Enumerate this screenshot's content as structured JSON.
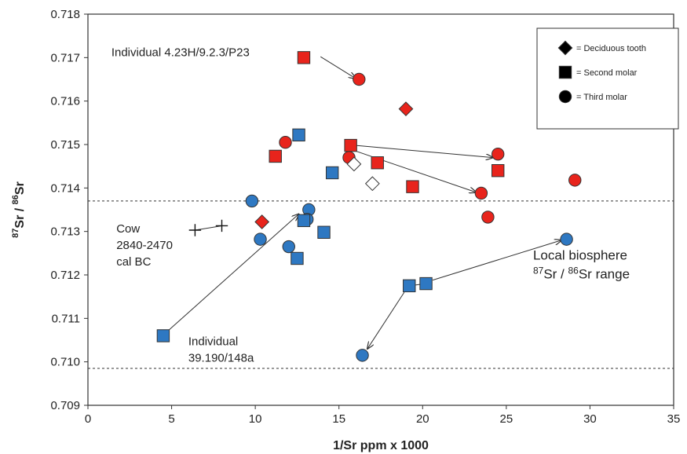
{
  "chart_data": {
    "type": "scatter",
    "xlabel": "1/Sr ppm x 1000",
    "ylabel": {
      "pre": "87",
      "mid": "Sr / ",
      "pre2": "86",
      "post": "Sr"
    },
    "xlim": [
      0,
      35
    ],
    "ylim": [
      0.709,
      0.718
    ],
    "x_ticks": [
      0,
      5,
      10,
      15,
      20,
      25,
      30,
      35
    ],
    "y_ticks": [
      0.709,
      0.71,
      0.711,
      0.712,
      0.713,
      0.714,
      0.715,
      0.716,
      0.717,
      0.718
    ],
    "x_tick_labels": [
      "0",
      "5",
      "10",
      "15",
      "20",
      "25",
      "30",
      "35"
    ],
    "y_tick_labels": [
      "0.709",
      "0.710",
      "0.711",
      "0.712",
      "0.713",
      "0.714",
      "0.715",
      "0.716",
      "0.717",
      "0.718"
    ],
    "colors": {
      "red": "#e8241c",
      "blue": "#2e78c2",
      "edge": "#333333"
    },
    "reference_lines": [
      0.7137,
      0.70985
    ],
    "legend": {
      "placement": "top-right",
      "entries": [
        {
          "marker": "diamond",
          "label": "= Deciduous tooth"
        },
        {
          "marker": "square",
          "label": "= Second molar"
        },
        {
          "marker": "circle",
          "label": "= Third molar"
        }
      ]
    },
    "points": [
      {
        "marker": "square",
        "color": "red",
        "x": 12.9,
        "y": 0.717
      },
      {
        "marker": "circle",
        "color": "red",
        "x": 16.2,
        "y": 0.7165
      },
      {
        "marker": "diamond",
        "color": "red",
        "x": 19.0,
        "y": 0.71582
      },
      {
        "marker": "circle",
        "color": "red",
        "x": 11.8,
        "y": 0.71505
      },
      {
        "marker": "square",
        "color": "red",
        "x": 11.2,
        "y": 0.71473
      },
      {
        "marker": "square",
        "color": "red",
        "x": 15.7,
        "y": 0.71498
      },
      {
        "marker": "circle",
        "color": "red",
        "x": 15.6,
        "y": 0.7147
      },
      {
        "marker": "square",
        "color": "red",
        "x": 17.3,
        "y": 0.71458
      },
      {
        "marker": "square",
        "color": "red",
        "x": 19.4,
        "y": 0.71403
      },
      {
        "marker": "circle",
        "color": "red",
        "x": 24.5,
        "y": 0.71478
      },
      {
        "marker": "square",
        "color": "red",
        "x": 24.5,
        "y": 0.7144
      },
      {
        "marker": "circle",
        "color": "red",
        "x": 23.5,
        "y": 0.71388
      },
      {
        "marker": "circle",
        "color": "red",
        "x": 29.1,
        "y": 0.71418
      },
      {
        "marker": "circle",
        "color": "red",
        "x": 23.9,
        "y": 0.71333
      },
      {
        "marker": "diamond",
        "color": "red",
        "x": 10.4,
        "y": 0.71322
      },
      {
        "marker": "square",
        "color": "blue",
        "x": 12.6,
        "y": 0.71522
      },
      {
        "marker": "square",
        "color": "blue",
        "x": 14.6,
        "y": 0.71435
      },
      {
        "marker": "circle",
        "color": "blue",
        "x": 9.8,
        "y": 0.7137
      },
      {
        "marker": "circle",
        "color": "blue",
        "x": 13.2,
        "y": 0.7135
      },
      {
        "marker": "circle",
        "color": "blue",
        "x": 13.1,
        "y": 0.71328
      },
      {
        "marker": "square",
        "color": "blue",
        "x": 12.9,
        "y": 0.71325
      },
      {
        "marker": "square",
        "color": "blue",
        "x": 14.1,
        "y": 0.71298
      },
      {
        "marker": "circle",
        "color": "blue",
        "x": 10.3,
        "y": 0.71282
      },
      {
        "marker": "circle",
        "color": "blue",
        "x": 12.0,
        "y": 0.71265
      },
      {
        "marker": "square",
        "color": "blue",
        "x": 12.5,
        "y": 0.71238
      },
      {
        "marker": "circle",
        "color": "blue",
        "x": 28.6,
        "y": 0.71282
      },
      {
        "marker": "square",
        "color": "blue",
        "x": 20.2,
        "y": 0.7118
      },
      {
        "marker": "square",
        "color": "blue",
        "x": 19.2,
        "y": 0.71175
      },
      {
        "marker": "square",
        "color": "blue",
        "x": 4.5,
        "y": 0.7106
      },
      {
        "marker": "circle",
        "color": "blue",
        "x": 16.4,
        "y": 0.71015
      },
      {
        "marker": "diamond",
        "color": "white",
        "x": 15.9,
        "y": 0.71455
      },
      {
        "marker": "diamond",
        "color": "white",
        "x": 17.0,
        "y": 0.7141
      },
      {
        "marker": "cross",
        "color": "black",
        "x": 6.4,
        "y": 0.71303
      },
      {
        "marker": "cross",
        "color": "black",
        "x": 8.0,
        "y": 0.71313
      }
    ],
    "connectors": [
      {
        "from": [
          6.4,
          0.71303
        ],
        "to": [
          8.0,
          0.71313
        ],
        "arrow": false
      },
      {
        "from": [
          19.2,
          0.71175
        ],
        "to": [
          20.2,
          0.7118
        ],
        "arrow": false
      },
      {
        "from": [
          13.9,
          0.71702
        ],
        "to": [
          16.0,
          0.71652
        ],
        "arrow": true
      },
      {
        "from": [
          16.0,
          0.71498
        ],
        "to": [
          24.2,
          0.7147
        ],
        "arrow": true
      },
      {
        "from": [
          16.0,
          0.71485
        ],
        "to": [
          23.2,
          0.7139
        ],
        "arrow": true
      },
      {
        "from": [
          4.8,
          0.71072
        ],
        "to": [
          12.6,
          0.7134
        ],
        "arrow": true
      },
      {
        "from": [
          20.6,
          0.71188
        ],
        "to": [
          28.3,
          0.7128
        ],
        "arrow": true
      },
      {
        "from": [
          18.9,
          0.7116
        ],
        "to": [
          16.7,
          0.7103
        ],
        "arrow": true
      }
    ],
    "annotations": [
      {
        "lines": [
          "Individual 4.23H/9.2.3/P23"
        ],
        "x": 1.4,
        "y": 0.71703,
        "size": "normal"
      },
      {
        "lines": [
          "Cow",
          "2840-2470",
          "cal BC"
        ],
        "x": 1.7,
        "y": 0.71298,
        "size": "normal"
      },
      {
        "lines": [
          "Individual",
          "39.190/148a"
        ],
        "x": 6.0,
        "y": 0.71038,
        "size": "normal"
      }
    ],
    "range_label": {
      "line1": "Local biosphere",
      "sup1": "87",
      "mid": "Sr / ",
      "sup2": "86",
      "post": "Sr range",
      "x": 26.6,
      "y": 0.71235
    }
  }
}
